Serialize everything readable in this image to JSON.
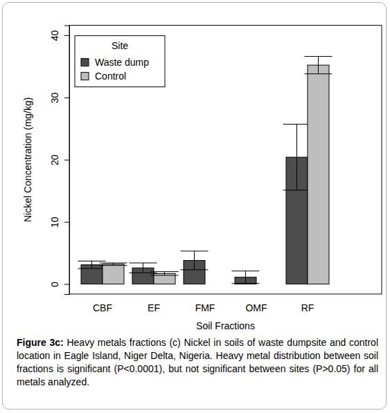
{
  "chart_data": {
    "type": "bar",
    "x_label": "Soil Fractions",
    "y_label": "Nickel Concentration (mg/kg)",
    "categories": [
      "CBF",
      "EF",
      "FMF",
      "OMF",
      "RF"
    ],
    "series": [
      {
        "name": "Waste dump",
        "color": "#4d4d4d",
        "values": [
          3.1,
          2.6,
          3.8,
          1.1,
          20.4
        ],
        "error": [
          0.6,
          0.8,
          1.5,
          1.0,
          5.3
        ]
      },
      {
        "name": "Control",
        "color": "#bebebe",
        "values": [
          3.2,
          1.7,
          0,
          0,
          35.2
        ],
        "error": [
          0.2,
          0.3,
          0,
          0,
          1.4
        ]
      }
    ],
    "ylim": [
      -1.6,
      41.6
    ],
    "yticks": [
      0,
      10,
      20,
      30,
      40
    ],
    "legend": "topleft",
    "legend_title": "Site",
    "caption": {
      "label": "Figure 3c:",
      "text": "Heavy metals fractions (c) Nickel in soils of waste dumpsite and control location in Eagle Island, Niger Delta, Nigeria. Heavy metal distribution between soil fractions is significant (P<0.0001), but not significant between sites (P>0.05) for all metals analyzed."
    }
  }
}
